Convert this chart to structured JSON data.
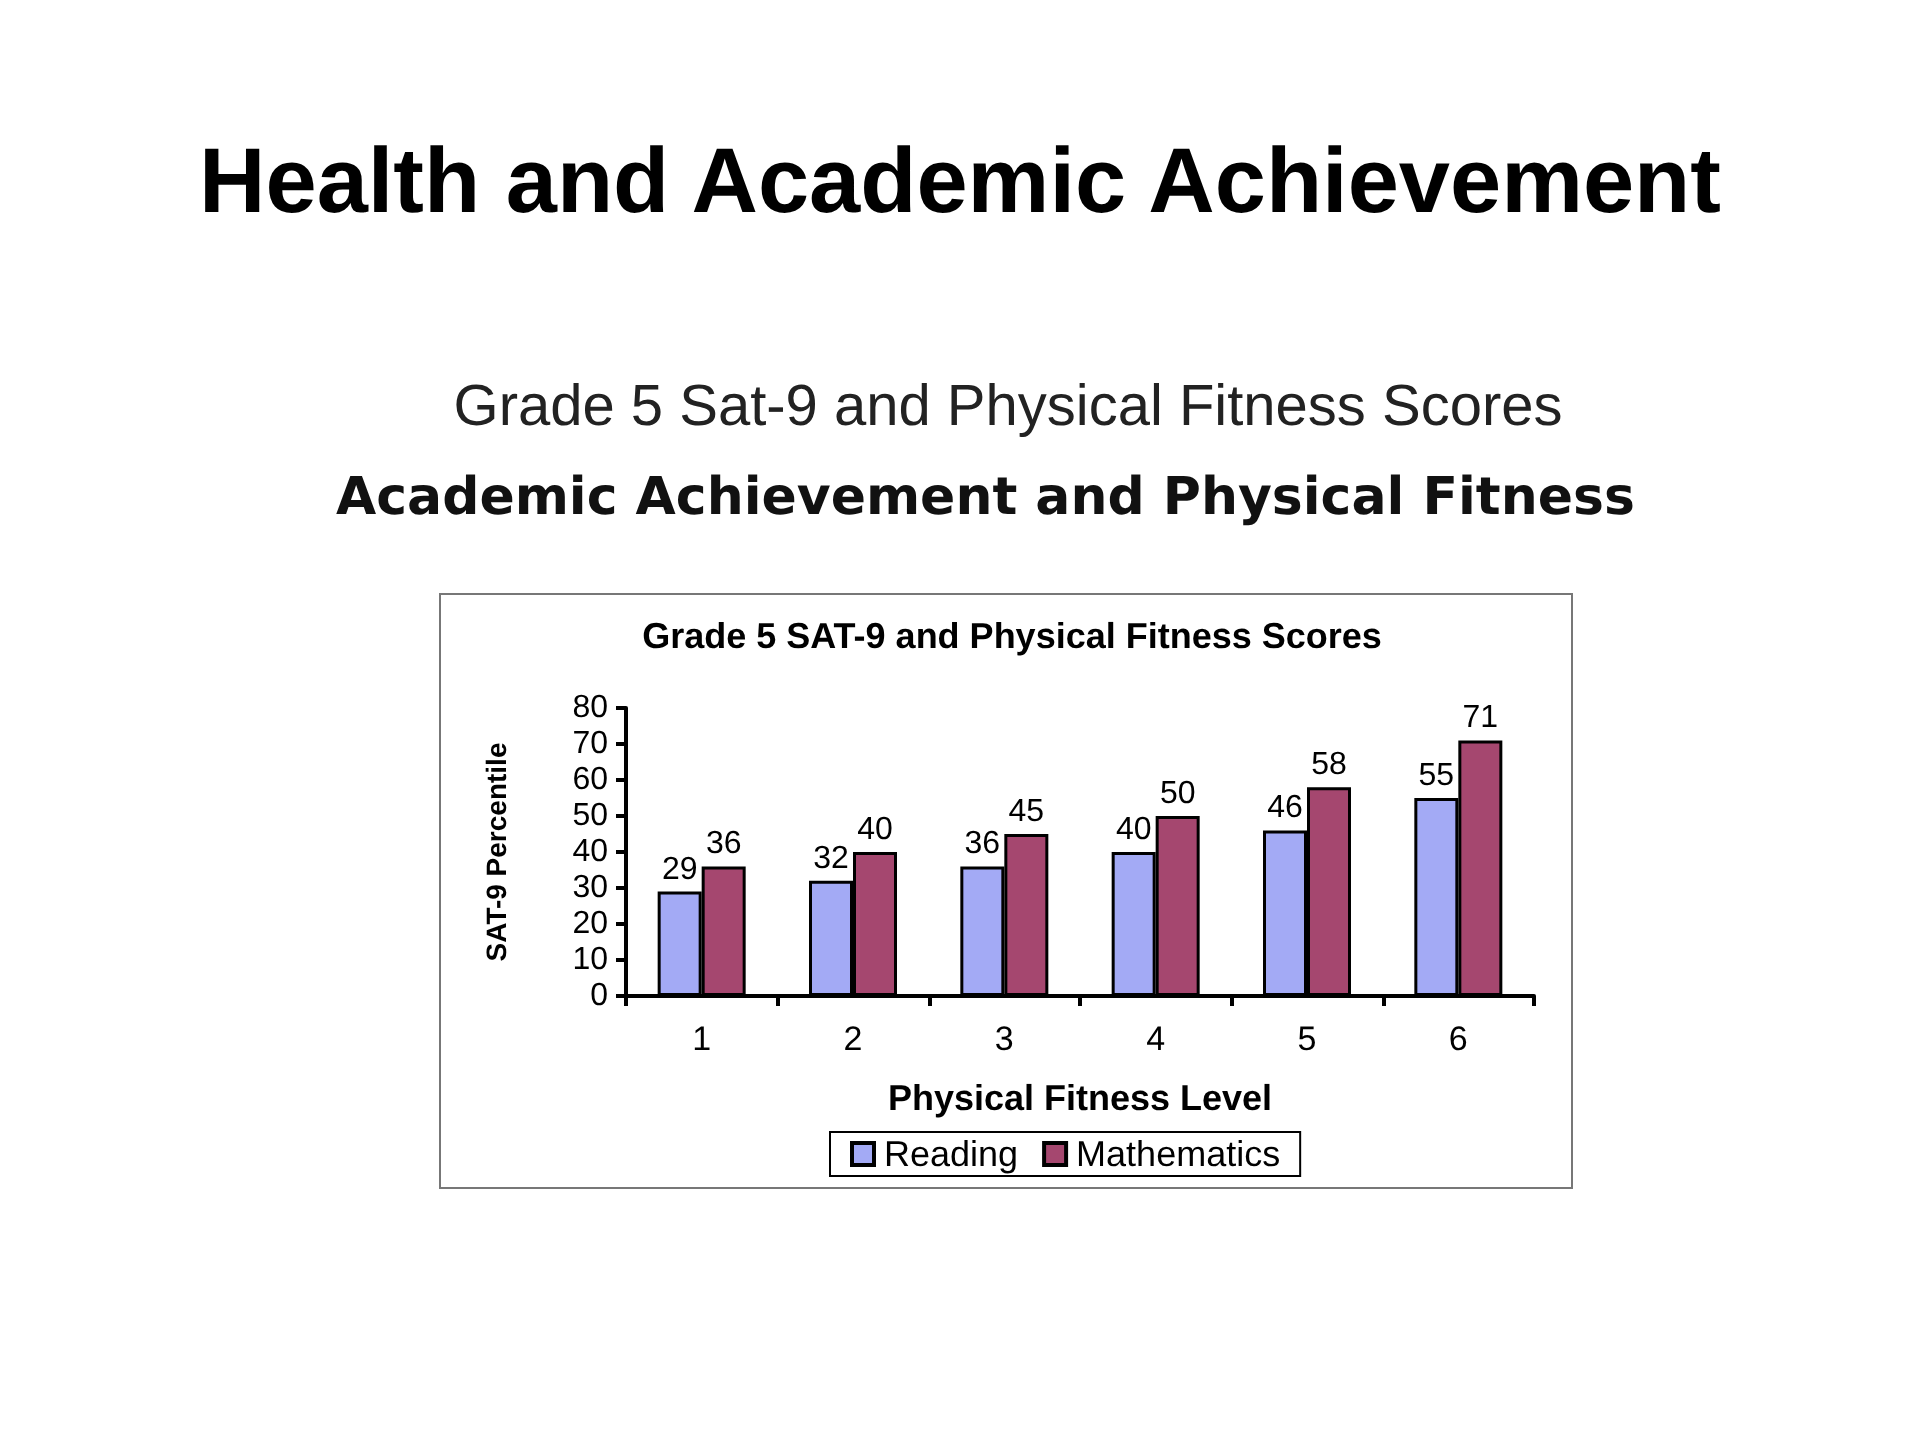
{
  "chart_data": {
    "type": "bar",
    "title": "Health and Academic Achievement",
    "subtitle": "Grade 5 Sat-9 and Physical Fitness Scores",
    "annotations": [
      "Academic Achievement and Physical Fitness",
      "Grade 5 SAT-9 and Physical Fitness Scores"
    ],
    "xlabel": "Physical Fitness Level",
    "ylabel": "SAT-9 Percentile",
    "categories": [
      "1",
      "2",
      "3",
      "4",
      "5",
      "6"
    ],
    "series": [
      {
        "name": "Reading",
        "color": "#a3aaf5",
        "values": [
          29,
          32,
          36,
          40,
          46,
          55
        ]
      },
      {
        "name": "Mathematics",
        "color": "#a5476f",
        "values": [
          36,
          40,
          45,
          50,
          58,
          71
        ]
      }
    ],
    "ylim": [
      0,
      80
    ],
    "yticks": [
      0,
      10,
      20,
      30,
      40,
      50,
      60,
      70,
      80
    ],
    "grid": false,
    "legend": "bottom",
    "data_labels": true
  }
}
